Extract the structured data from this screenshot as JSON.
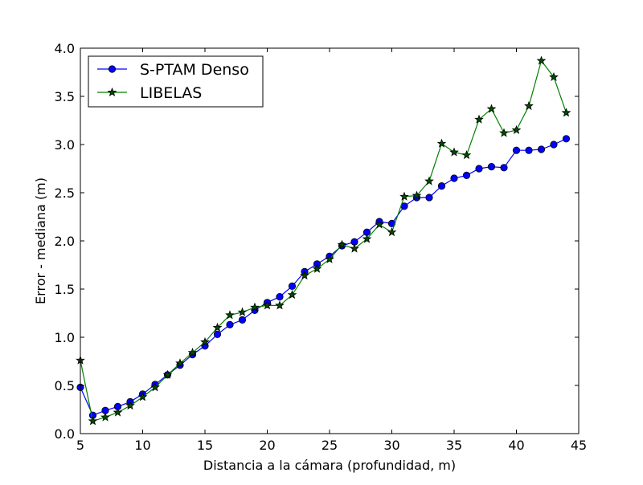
{
  "chart_data": {
    "type": "line",
    "xlabel": "Distancia a la cámara (profundidad, m)",
    "ylabel": "Error - mediana (m)",
    "xlim": [
      5,
      45
    ],
    "ylim": [
      0.0,
      4.0
    ],
    "xticks": [
      5,
      10,
      15,
      20,
      25,
      30,
      35,
      40,
      45
    ],
    "xtick_labels": [
      "5",
      "10",
      "15",
      "20",
      "25",
      "30",
      "35",
      "40",
      "45"
    ],
    "yticks": [
      0.0,
      0.5,
      1.0,
      1.5,
      2.0,
      2.5,
      3.0,
      3.5,
      4.0
    ],
    "ytick_labels": [
      "0.0",
      "0.5",
      "1.0",
      "1.5",
      "2.0",
      "2.5",
      "3.0",
      "3.5",
      "4.0"
    ],
    "grid": false,
    "legend_position": "top-left",
    "x": [
      5,
      6,
      7,
      8,
      9,
      10,
      11,
      12,
      13,
      14,
      15,
      16,
      17,
      18,
      19,
      20,
      21,
      22,
      23,
      24,
      25,
      26,
      27,
      28,
      29,
      30,
      31,
      32,
      33,
      34,
      35,
      36,
      37,
      38,
      39,
      40,
      41,
      42,
      43,
      44
    ],
    "series": [
      {
        "name": "S-PTAM Denso",
        "color": "#0000ff",
        "line_color": "#0000ff",
        "marker": "circle",
        "values": [
          0.48,
          0.19,
          0.24,
          0.28,
          0.33,
          0.41,
          0.51,
          0.61,
          0.71,
          0.82,
          0.91,
          1.03,
          1.13,
          1.18,
          1.28,
          1.36,
          1.42,
          1.53,
          1.68,
          1.76,
          1.84,
          1.95,
          1.99,
          2.09,
          2.2,
          2.18,
          2.36,
          2.45,
          2.45,
          2.57,
          2.65,
          2.68,
          2.75,
          2.77,
          2.76,
          2.94,
          2.94,
          2.95,
          3.0,
          3.06
        ]
      },
      {
        "name": "LIBELAS",
        "color": "#004d00",
        "line_color": "#007f00",
        "marker": "star",
        "values": [
          0.76,
          0.13,
          0.17,
          0.22,
          0.29,
          0.38,
          0.48,
          0.61,
          0.73,
          0.84,
          0.95,
          1.1,
          1.23,
          1.26,
          1.31,
          1.33,
          1.33,
          1.44,
          1.64,
          1.71,
          1.81,
          1.96,
          1.92,
          2.02,
          2.17,
          2.09,
          2.46,
          2.47,
          2.62,
          3.01,
          2.92,
          2.89,
          3.26,
          3.37,
          3.12,
          3.15,
          3.4,
          3.87,
          3.7,
          3.33
        ]
      }
    ]
  }
}
